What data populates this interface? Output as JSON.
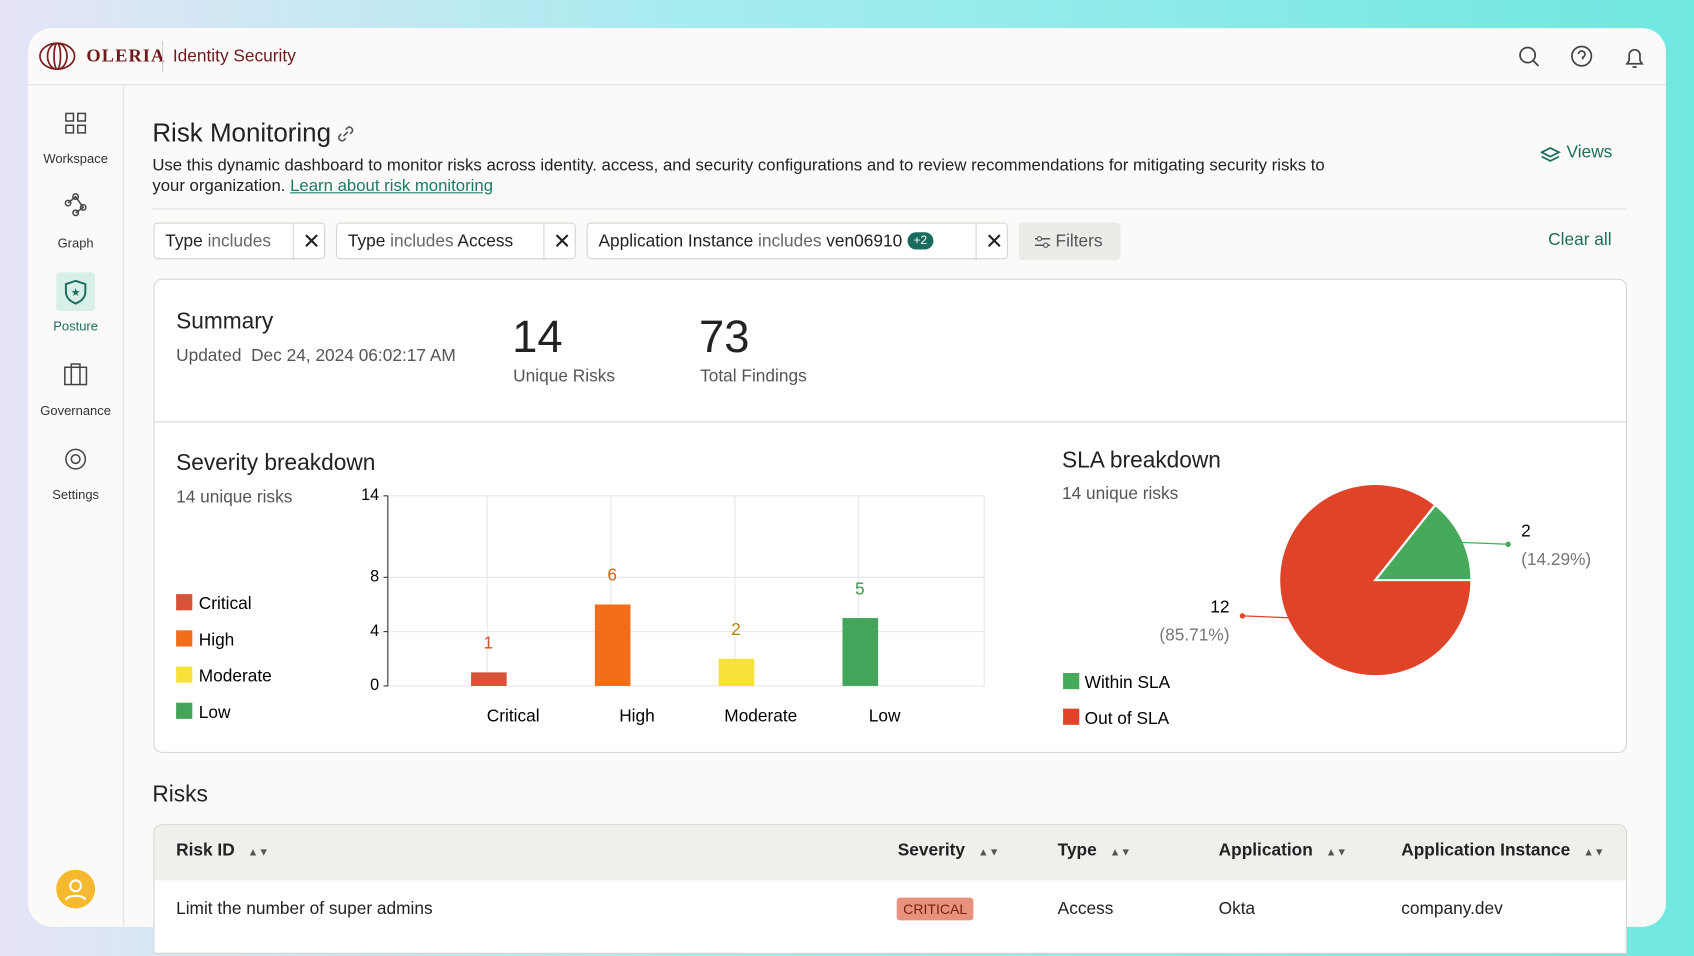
{
  "header": {
    "brand": "OLERIA",
    "product": "Identity Security"
  },
  "nav": [
    {
      "label": "Workspace"
    },
    {
      "label": "Graph"
    },
    {
      "label": "Posture"
    },
    {
      "label": "Governance"
    },
    {
      "label": "Settings"
    }
  ],
  "page": {
    "title": "Risk Monitoring",
    "description": "Use this dynamic dashboard to monitor risks across identity. access, and security configurations and to review recommendations for mitigating security risks to your organization.",
    "link": "Learn about risk monitoring",
    "views": "Views"
  },
  "filters": [
    {
      "field": "Type",
      "op": "includes"
    },
    {
      "field": "Type",
      "op": "includes",
      "value": "Access"
    },
    {
      "field": "Application Instance",
      "op": "includes",
      "value": "ven06910",
      "badge": "+2"
    }
  ],
  "filters_button": "Filters",
  "clear_all": "Clear all",
  "summary": {
    "title": "Summary",
    "updated_label": "Updated",
    "updated": "Dec 24, 2024 06:02:17 AM",
    "stats": [
      {
        "value": 14,
        "label": "Unique Risks"
      },
      {
        "value": 73,
        "label": "Total Findings"
      }
    ]
  },
  "chart_data": [
    {
      "type": "bar",
      "title": "Severity breakdown",
      "subtitle": "14 unique risks",
      "categories": [
        "Critical",
        "High",
        "Moderate",
        "Low"
      ],
      "values": [
        1,
        6,
        2,
        5
      ],
      "colors": [
        "#d9533b",
        "#f26d1a",
        "#f7e23a",
        "#44a55a"
      ],
      "value_label_colors": [
        "#d0552c",
        "#d8650f",
        "#b9870f",
        "#3a9a4c"
      ],
      "ylim": [
        0,
        14
      ],
      "yticks": [
        0,
        4,
        8,
        14
      ],
      "grid": true,
      "legend": "left"
    },
    {
      "type": "pie",
      "title": "SLA breakdown",
      "subtitle": "14 unique risks",
      "categories": [
        "Within SLA",
        "Out of SLA"
      ],
      "values": [
        2,
        12
      ],
      "percent_labels": [
        "(14.29%)",
        "(85.71%)"
      ],
      "colors": [
        "#47a95a",
        "#e04428"
      ],
      "legend": "bottom-left"
    }
  ],
  "risks": {
    "title": "Risks",
    "columns": [
      "Risk ID",
      "Severity",
      "Type",
      "Application",
      "Application Instance"
    ],
    "rows": [
      [
        "Limit the number of super admins",
        "CRITICAL",
        "Access",
        "Okta",
        "company.dev"
      ]
    ]
  }
}
